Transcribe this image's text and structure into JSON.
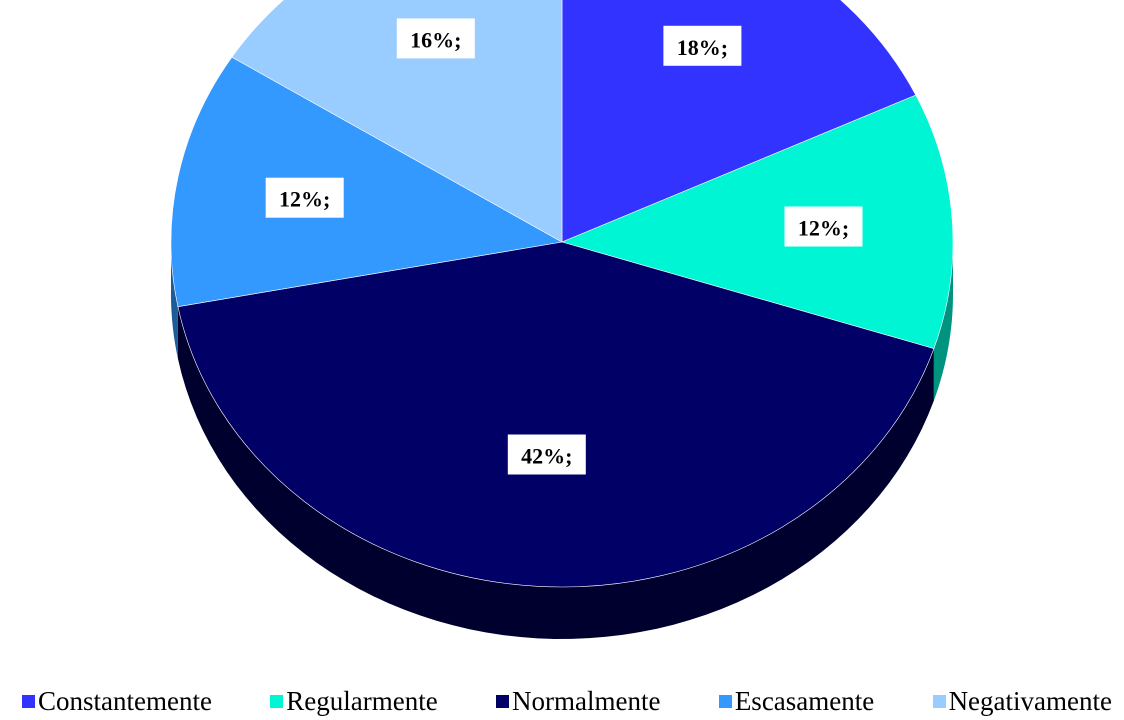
{
  "chart_data": {
    "type": "pie",
    "style": "3d",
    "categories": [
      "Constantemente",
      "Regularmente",
      "Normalmente",
      "Escasamente",
      "Negativamente"
    ],
    "values": [
      18,
      12,
      42,
      12,
      16
    ],
    "data_labels": [
      "18%;",
      "12%;",
      "42%;",
      "12%;",
      "16%;"
    ],
    "colors": [
      "#3333ff",
      "#00f5d4",
      "#000066",
      "#3399ff",
      "#99ccff"
    ],
    "edge_colors": [
      "#1d1d99",
      "#009480",
      "#00002e",
      "#1d5c99",
      "#5c7a99"
    ],
    "legend_position": "bottom"
  }
}
